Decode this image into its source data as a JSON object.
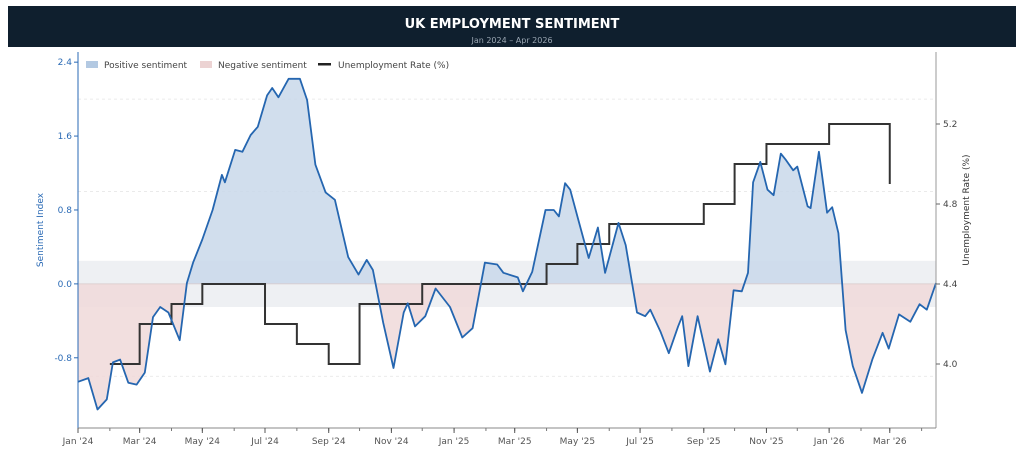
{
  "header": {
    "title": "UK EMPLOYMENT SENTIMENT",
    "subtitle": "Jan 2024 – Apr 2026"
  },
  "colors": {
    "header_bg": "#0f1f2e",
    "sentiment_line": "#2566b0",
    "positive_fill": "#c9d8ea",
    "negative_fill": "#f0d9d9",
    "neutral_band": "#eef0f3",
    "unemployment_line": "#333333",
    "left_axis": "#2a6ab5"
  },
  "chart_data": {
    "type": "line",
    "x_range": [
      "2024-01-01",
      "2026-04-15"
    ],
    "x_ticks": [
      {
        "date": "2024-01-01",
        "label": "Jan '24"
      },
      {
        "date": "2024-03-01",
        "label": "Mar '24"
      },
      {
        "date": "2024-05-01",
        "label": "May '24"
      },
      {
        "date": "2024-07-01",
        "label": "Jul '24"
      },
      {
        "date": "2024-09-01",
        "label": "Sep '24"
      },
      {
        "date": "2024-11-01",
        "label": "Nov '24"
      },
      {
        "date": "2025-01-01",
        "label": "Jan '25"
      },
      {
        "date": "2025-03-01",
        "label": "Mar '25"
      },
      {
        "date": "2025-05-01",
        "label": "May '25"
      },
      {
        "date": "2025-07-01",
        "label": "Jul '25"
      },
      {
        "date": "2025-09-01",
        "label": "Sep '25"
      },
      {
        "date": "2025-11-01",
        "label": "Nov '25"
      },
      {
        "date": "2026-01-01",
        "label": "Jan '26"
      },
      {
        "date": "2026-03-01",
        "label": "Mar '26"
      }
    ],
    "y_left": {
      "label": "Sentiment Index",
      "range": [
        -1.56,
        2.51
      ],
      "ticks": [
        "-0.8",
        "0.0",
        "0.8",
        "1.6",
        "2.4"
      ]
    },
    "y_right": {
      "label": "Unemployment Rate (%)",
      "range": [
        3.68,
        5.56
      ],
      "ticks": [
        "4.0",
        "4.4",
        "4.8",
        "5.2"
      ]
    },
    "neutral_band": [
      -0.25,
      0.25
    ],
    "grid": "dashed horizontal",
    "legend": {
      "placement": "top-left",
      "items": [
        "Positive sentiment",
        "Negative sentiment",
        "Unemployment Rate (%)"
      ]
    },
    "series": [
      {
        "name": "Sentiment",
        "axis": "left",
        "points": [
          [
            "2024-01-01",
            -1.06
          ],
          [
            "2024-01-11",
            -1.02
          ],
          [
            "2024-01-20",
            -1.36
          ],
          [
            "2024-01-29",
            -1.25
          ],
          [
            "2024-02-04",
            -0.85
          ],
          [
            "2024-02-11",
            -0.82
          ],
          [
            "2024-02-19",
            -1.07
          ],
          [
            "2024-02-27",
            -1.09
          ],
          [
            "2024-03-06",
            -0.96
          ],
          [
            "2024-03-14",
            -0.36
          ],
          [
            "2024-03-21",
            -0.25
          ],
          [
            "2024-03-29",
            -0.31
          ],
          [
            "2024-04-09",
            -0.61
          ],
          [
            "2024-04-16",
            0.01
          ],
          [
            "2024-04-22",
            0.23
          ],
          [
            "2024-05-01",
            0.48
          ],
          [
            "2024-05-11",
            0.8
          ],
          [
            "2024-05-20",
            1.18
          ],
          [
            "2024-05-23",
            1.1
          ],
          [
            "2024-06-02",
            1.45
          ],
          [
            "2024-06-09",
            1.43
          ],
          [
            "2024-06-17",
            1.61
          ],
          [
            "2024-06-24",
            1.7
          ],
          [
            "2024-07-03",
            2.04
          ],
          [
            "2024-07-08",
            2.12
          ],
          [
            "2024-07-14",
            2.02
          ],
          [
            "2024-07-24",
            2.22
          ],
          [
            "2024-08-04",
            2.22
          ],
          [
            "2024-08-11",
            1.99
          ],
          [
            "2024-08-19",
            1.29
          ],
          [
            "2024-08-29",
            0.99
          ],
          [
            "2024-09-07",
            0.91
          ],
          [
            "2024-09-20",
            0.29
          ],
          [
            "2024-09-30",
            0.1
          ],
          [
            "2024-10-08",
            0.26
          ],
          [
            "2024-10-14",
            0.15
          ],
          [
            "2024-10-24",
            -0.42
          ],
          [
            "2024-11-03",
            -0.91
          ],
          [
            "2024-11-13",
            -0.31
          ],
          [
            "2024-11-17",
            -0.21
          ],
          [
            "2024-11-24",
            -0.46
          ],
          [
            "2024-12-04",
            -0.35
          ],
          [
            "2024-12-14",
            -0.05
          ],
          [
            "2024-12-28",
            -0.25
          ],
          [
            "2025-01-09",
            -0.58
          ],
          [
            "2025-01-19",
            -0.48
          ],
          [
            "2025-01-31",
            0.23
          ],
          [
            "2025-02-12",
            0.21
          ],
          [
            "2025-02-18",
            0.12
          ],
          [
            "2025-03-04",
            0.07
          ],
          [
            "2025-03-09",
            -0.08
          ],
          [
            "2025-03-18",
            0.13
          ],
          [
            "2025-03-31",
            0.8
          ],
          [
            "2025-04-08",
            0.8
          ],
          [
            "2025-04-13",
            0.73
          ],
          [
            "2025-04-19",
            1.09
          ],
          [
            "2025-04-24",
            1.02
          ],
          [
            "2025-05-02",
            0.69
          ],
          [
            "2025-05-12",
            0.28
          ],
          [
            "2025-05-21",
            0.61
          ],
          [
            "2025-05-28",
            0.12
          ],
          [
            "2025-06-10",
            0.66
          ],
          [
            "2025-06-17",
            0.42
          ],
          [
            "2025-06-28",
            -0.31
          ],
          [
            "2025-07-06",
            -0.35
          ],
          [
            "2025-07-11",
            -0.28
          ],
          [
            "2025-07-21",
            -0.52
          ],
          [
            "2025-07-29",
            -0.75
          ],
          [
            "2025-08-07",
            -0.46
          ],
          [
            "2025-08-11",
            -0.35
          ],
          [
            "2025-08-17",
            -0.89
          ],
          [
            "2025-08-26",
            -0.35
          ],
          [
            "2025-09-07",
            -0.95
          ],
          [
            "2025-09-15",
            -0.6
          ],
          [
            "2025-09-22",
            -0.87
          ],
          [
            "2025-09-30",
            -0.07
          ],
          [
            "2025-10-08",
            -0.08
          ],
          [
            "2025-10-14",
            0.12
          ],
          [
            "2025-10-19",
            1.1
          ],
          [
            "2025-10-26",
            1.32
          ],
          [
            "2025-11-02",
            1.02
          ],
          [
            "2025-11-08",
            0.96
          ],
          [
            "2025-11-15",
            1.41
          ],
          [
            "2025-11-20",
            1.34
          ],
          [
            "2025-11-27",
            1.23
          ],
          [
            "2025-12-01",
            1.27
          ],
          [
            "2025-12-11",
            0.84
          ],
          [
            "2025-12-14",
            0.82
          ],
          [
            "2025-12-22",
            1.43
          ],
          [
            "2025-12-30",
            0.77
          ],
          [
            "2026-01-04",
            0.83
          ],
          [
            "2026-01-10",
            0.55
          ],
          [
            "2026-01-17",
            -0.5
          ],
          [
            "2026-01-24",
            -0.89
          ],
          [
            "2026-02-02",
            -1.18
          ],
          [
            "2026-02-12",
            -0.82
          ],
          [
            "2026-02-22",
            -0.53
          ],
          [
            "2026-02-28",
            -0.7
          ],
          [
            "2026-03-10",
            -0.33
          ],
          [
            "2026-03-21",
            -0.41
          ],
          [
            "2026-03-30",
            -0.22
          ],
          [
            "2026-04-06",
            -0.28
          ],
          [
            "2026-04-15",
            0.01
          ]
        ]
      },
      {
        "name": "Unemployment Rate (%)",
        "axis": "right",
        "step": true,
        "points": [
          [
            "2024-02-01",
            4.0
          ],
          [
            "2024-03-01",
            4.2
          ],
          [
            "2024-04-01",
            4.3
          ],
          [
            "2024-05-01",
            4.4
          ],
          [
            "2024-07-01",
            4.2
          ],
          [
            "2024-08-01",
            4.1
          ],
          [
            "2024-09-01",
            4.0
          ],
          [
            "2024-10-01",
            4.3
          ],
          [
            "2024-12-01",
            4.4
          ],
          [
            "2025-04-01",
            4.5
          ],
          [
            "2025-05-01",
            4.6
          ],
          [
            "2025-06-01",
            4.7
          ],
          [
            "2025-09-01",
            4.8
          ],
          [
            "2025-10-01",
            5.0
          ],
          [
            "2025-11-01",
            5.1
          ],
          [
            "2026-01-01",
            5.2
          ],
          [
            "2026-03-01",
            4.9
          ]
        ]
      }
    ]
  }
}
